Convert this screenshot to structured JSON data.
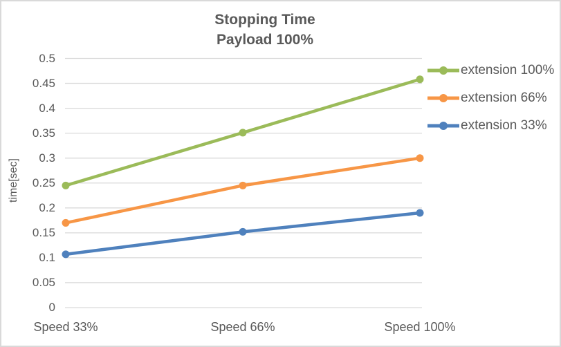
{
  "window": {
    "background": "#ffffff",
    "border_color": "#d9d9d9"
  },
  "chart_data": {
    "type": "line",
    "title": "Stopping Time",
    "subtitle": "Payload 100%",
    "ylabel": "time[sec]",
    "xlabel": "",
    "categories": [
      "Speed 33%",
      "Speed 66%",
      "Speed 100%"
    ],
    "series": [
      {
        "name": "extension 100%",
        "color": "#9bbb59",
        "values": [
          0.245,
          0.351,
          0.458
        ]
      },
      {
        "name": "extension 66%",
        "color": "#f79646",
        "values": [
          0.17,
          0.245,
          0.3
        ]
      },
      {
        "name": "extension 33%",
        "color": "#4f81bd",
        "values": [
          0.107,
          0.152,
          0.19
        ]
      }
    ],
    "ylim": [
      0,
      0.5
    ],
    "ytick_step": 0.05,
    "yticks": [
      "0",
      "0.05",
      "0.1",
      "0.15",
      "0.2",
      "0.25",
      "0.3",
      "0.35",
      "0.4",
      "0.45",
      "0.5"
    ],
    "grid": true,
    "legend_position": "right",
    "text_color": "#595959",
    "grid_color": "#d9d9d9"
  }
}
